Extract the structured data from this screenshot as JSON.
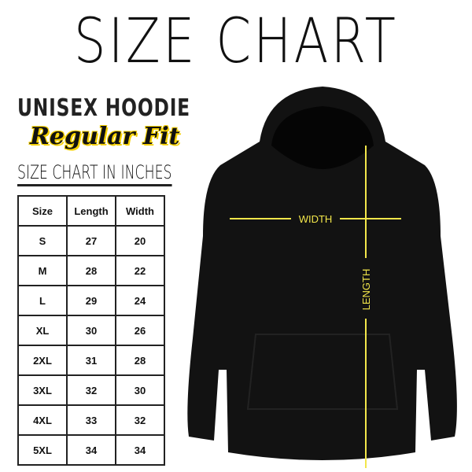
{
  "title": "SIZE CHART",
  "product": "UNISEX HOODIE",
  "fit": "Regular Fit",
  "table_caption": "SIZE CHART IN INCHES",
  "table": {
    "headers": [
      "Size",
      "Length",
      "Width"
    ],
    "rows": [
      [
        "S",
        "27",
        "20"
      ],
      [
        "M",
        "28",
        "22"
      ],
      [
        "L",
        "29",
        "24"
      ],
      [
        "XL",
        "30",
        "26"
      ],
      [
        "2XL",
        "31",
        "28"
      ],
      [
        "3XL",
        "32",
        "30"
      ],
      [
        "4XL",
        "33",
        "32"
      ],
      [
        "5XL",
        "34",
        "34"
      ]
    ]
  },
  "diagram": {
    "width_label": "WIDTH",
    "length_label": "LENGTH",
    "line_color": "#f2e64a",
    "garment_color": "#121212"
  }
}
